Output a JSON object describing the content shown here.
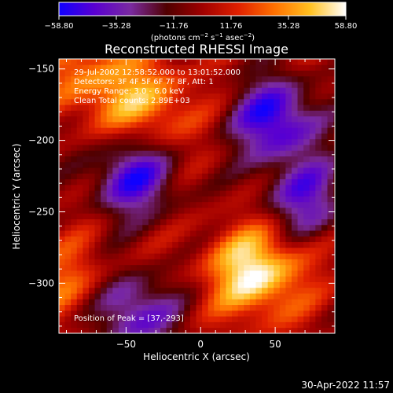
{
  "chart_data": {
    "type": "heatmap",
    "title": "Reconstructed RHESSI Image",
    "xlabel": "Heliocentric X (arcsec)",
    "ylabel": "Heliocentric Y (arcsec)",
    "xlim": [
      -95,
      90
    ],
    "ylim": [
      -335,
      -143
    ],
    "xticks": [
      -50,
      0,
      50
    ],
    "xtick_labels": [
      "−50",
      "0",
      "50"
    ],
    "yticks": [
      -150,
      -200,
      -250,
      -300
    ],
    "ytick_labels": [
      "−150",
      "−200",
      "−250",
      "−300"
    ],
    "colorbar": {
      "range": [
        -58.8,
        58.8
      ],
      "ticks": [
        -58.8,
        -35.28,
        -11.76,
        11.76,
        35.28,
        58.8
      ],
      "tick_labels": [
        "−58.80",
        "−35.28",
        "−11.76",
        "11.76",
        "35.28",
        "58.80"
      ],
      "unit_label_parts": [
        "(photons cm",
        "−2",
        " s",
        "−1",
        " asec",
        "−2",
        ")"
      ],
      "colors": [
        "#1000ff",
        "#5a00d0",
        "#7a2aa0",
        "#500000",
        "#a00000",
        "#e02000",
        "#ff7000",
        "#ffc020",
        "#ffffff"
      ]
    },
    "annotations": [
      "29-Jul-2002 12:58:52.000 to 13:01:52.000",
      "Detectors: 3F 4F 5F 6F 7F 8F, Att: 1",
      "Energy Range: 3.0 - 6.0 keV",
      "Clean     Total counts: 2.89E+03"
    ],
    "peak_label": "Position of Peak = [37,-293]",
    "peak": [
      37,
      -293
    ],
    "bright_sources": [
      {
        "x": 37,
        "y": -292,
        "level": 58.8
      },
      {
        "x": -35,
        "y": -175,
        "level": 36
      },
      {
        "x": -75,
        "y": -155,
        "level": 30
      },
      {
        "x": -88,
        "y": -300,
        "level": 24
      }
    ],
    "dark_regions": [
      {
        "x": 50,
        "y": -185,
        "level": -55
      },
      {
        "x": -45,
        "y": -225,
        "level": -50
      },
      {
        "x": 70,
        "y": -240,
        "level": -40
      },
      {
        "x": -45,
        "y": -320,
        "level": -45
      }
    ]
  },
  "timestamp": "30-Apr-2022 11:57"
}
